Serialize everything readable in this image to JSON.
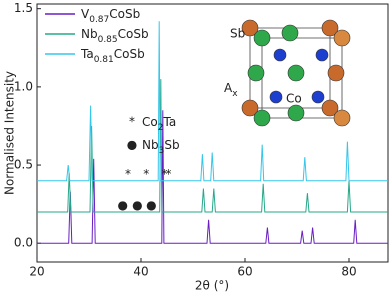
{
  "chart_data": {
    "type": "line",
    "xlabel": "2θ (°)",
    "ylabel": "Normalised Intensity",
    "xlim": [
      20,
      87.5
    ],
    "ylim": [
      -0.12,
      1.53
    ],
    "xticks": [
      20,
      40,
      60,
      80
    ],
    "yticks": [
      {
        "value": 0,
        "label": "0.0"
      },
      {
        "value": 0.5,
        "label": "0.5"
      },
      {
        "value": 1,
        "label": "1.0"
      },
      {
        "value": 1.5,
        "label": "1.5"
      }
    ],
    "legend": "upper left",
    "series": [
      {
        "name": "V0.87CoSb",
        "color": "#6a1fc2",
        "x": [
          20,
          26.1,
          26.4,
          26.7,
          30.6,
          30.9,
          31.2,
          44.0,
          44.2,
          44.4,
          52.7,
          53,
          53.3,
          64,
          64.3,
          64.6,
          70.7,
          71,
          71.3,
          72.7,
          73,
          73.3,
          80.9,
          81.2,
          81.5,
          87.5
        ],
        "values": [
          0,
          0,
          0.33,
          0,
          0,
          0.54,
          0,
          0,
          0.85,
          0,
          0,
          0.15,
          0,
          0,
          0.1,
          0,
          0,
          0.08,
          0,
          0,
          0.1,
          0,
          0,
          0.15,
          0,
          0
        ]
      },
      {
        "name": "Nb0.85CoSb",
        "color": "#26a88a",
        "x": [
          20,
          25.9,
          26.2,
          26.5,
          30.2,
          30.5,
          30.8,
          43.6,
          43.8,
          44.0,
          51.7,
          52,
          52.3,
          53.7,
          54,
          54.3,
          63.2,
          63.5,
          63.8,
          71.7,
          72,
          72.3,
          79.7,
          80,
          80.3,
          87.5
        ],
        "values": [
          0.2,
          0.2,
          0.45,
          0.2,
          0.2,
          0.75,
          0.2,
          0.2,
          1.05,
          0.2,
          0.2,
          0.35,
          0.2,
          0.2,
          0.35,
          0.2,
          0.2,
          0.38,
          0.2,
          0.2,
          0.32,
          0.2,
          0.2,
          0.4,
          0.2,
          0.2
        ]
      },
      {
        "name": "Ta0.81CoSb",
        "color": "#36c6ea",
        "x": [
          20,
          25.7,
          26,
          26.3,
          30,
          30.3,
          30.6,
          43.3,
          43.5,
          43.7,
          51.5,
          51.8,
          52.1,
          53.4,
          53.7,
          54,
          63,
          63.3,
          63.6,
          71.2,
          71.5,
          71.8,
          79.4,
          79.7,
          80,
          87.5
        ],
        "values": [
          0.4,
          0.4,
          0.5,
          0.4,
          0.4,
          0.88,
          0.4,
          0.4,
          1.42,
          0.4,
          0.4,
          0.57,
          0.4,
          0.4,
          0.58,
          0.4,
          0.4,
          0.63,
          0.4,
          0.4,
          0.55,
          0.4,
          0.4,
          0.65,
          0.4,
          0.4
        ]
      }
    ],
    "peak_markers": [
      {
        "symbol": "*",
        "label": "Co2Ta",
        "x": [
          37.5,
          41,
          44.5,
          45.3
        ],
        "y": 0.44
      },
      {
        "symbol": "●",
        "label": "Nb3Sb",
        "x": [
          36.5,
          39.3,
          42
        ],
        "y": 0.24
      }
    ],
    "inset_labels": {
      "sb": "Sb",
      "a": "Ax",
      "co": "Co"
    }
  }
}
